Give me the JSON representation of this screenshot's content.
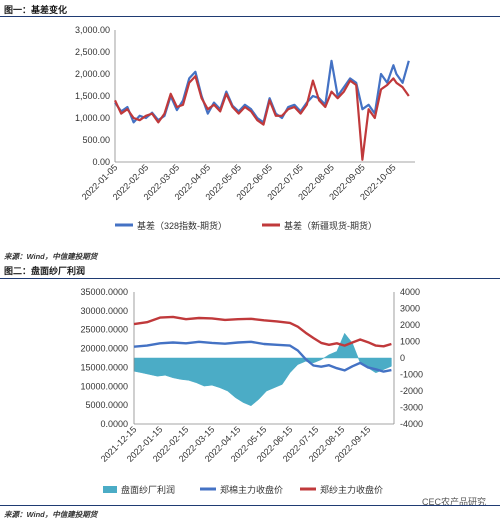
{
  "figure1": {
    "title": "图一：基差变化",
    "source": "来源：Wind，中信建投期货"
  },
  "figure2": {
    "title": "图二：盘面纱厂利润",
    "source": "来源：Wind，中信建投期货"
  },
  "watermark": "CEC农产品研究",
  "colors": {
    "blue": "#4472c4",
    "red": "#c0393b",
    "cyan": "#4bacc6",
    "rule": "#1f3b73"
  },
  "chart_data": [
    {
      "type": "line",
      "yticks": [
        "0.00",
        "500.00",
        "1,000.00",
        "1,500.00",
        "2,000.00",
        "2,500.00",
        "3,000.00"
      ],
      "ylim": [
        0,
        3000
      ],
      "x_tick_labels": [
        "2022-01-05",
        "2022-02-05",
        "2022-03-05",
        "2022-04-05",
        "2022-05-05",
        "2022-06-05",
        "2022-07-05",
        "2022-08-05",
        "2022-09-05",
        "2022-10-05"
      ],
      "legend_position": "bottom",
      "series": [
        {
          "name": "基差（328指数-期货）",
          "color": "#4472c4",
          "x": [
            0,
            0.2,
            0.4,
            0.6,
            0.8,
            1.0,
            1.2,
            1.4,
            1.6,
            1.8,
            2.0,
            2.2,
            2.4,
            2.6,
            2.8,
            3.0,
            3.2,
            3.4,
            3.6,
            3.8,
            4.0,
            4.2,
            4.4,
            4.6,
            4.8,
            5.0,
            5.2,
            5.4,
            5.6,
            5.8,
            6.0,
            6.2,
            6.4,
            6.6,
            6.8,
            7.0,
            7.2,
            7.4,
            7.6,
            7.8,
            8.0,
            8.2,
            8.4,
            8.6,
            8.8,
            9.0,
            9.1,
            9.3,
            9.5
          ],
          "values": [
            1350,
            1150,
            1250,
            900,
            1050,
            1000,
            1120,
            950,
            1050,
            1500,
            1180,
            1400,
            1900,
            2050,
            1500,
            1100,
            1350,
            1200,
            1600,
            1280,
            1150,
            1300,
            1200,
            1000,
            900,
            1450,
            1100,
            1000,
            1250,
            1300,
            1150,
            1350,
            1500,
            1450,
            1300,
            2300,
            1500,
            1700,
            1900,
            1800,
            1200,
            1300,
            1100,
            2000,
            1800,
            2200,
            2000,
            1800,
            2300
          ]
        },
        {
          "name": "基差（新疆现货-期货）",
          "color": "#c0393b",
          "x": [
            0,
            0.2,
            0.4,
            0.6,
            0.8,
            1.0,
            1.2,
            1.4,
            1.6,
            1.8,
            2.0,
            2.2,
            2.4,
            2.6,
            2.8,
            3.0,
            3.2,
            3.4,
            3.6,
            3.8,
            4.0,
            4.2,
            4.4,
            4.6,
            4.8,
            5.0,
            5.2,
            5.4,
            5.6,
            5.8,
            6.0,
            6.2,
            6.4,
            6.6,
            6.8,
            7.0,
            7.2,
            7.4,
            7.6,
            7.8,
            8.0,
            8.2,
            8.4,
            8.6,
            8.8,
            9.0,
            9.1,
            9.3,
            9.5
          ],
          "values": [
            1400,
            1100,
            1200,
            1000,
            950,
            1050,
            1100,
            900,
            1100,
            1550,
            1250,
            1300,
            1800,
            1950,
            1450,
            1200,
            1300,
            1150,
            1550,
            1250,
            1100,
            1250,
            1150,
            950,
            850,
            1400,
            1050,
            1050,
            1200,
            1250,
            1100,
            1300,
            1850,
            1400,
            1250,
            1600,
            1450,
            1600,
            1850,
            1750,
            50,
            1200,
            1000,
            1650,
            1750,
            1900,
            1800,
            1700,
            1500
          ]
        }
      ]
    },
    {
      "type": "bar+line",
      "left_yticks": [
        "0.0000",
        "5000.0000",
        "10000.0000",
        "15000.0000",
        "20000.0000",
        "25000.0000",
        "30000.0000",
        "35000.0000"
      ],
      "left_ylim": [
        0,
        35000
      ],
      "right_yticks": [
        "-4000",
        "-3000",
        "-2000",
        "-1000",
        "0",
        "1000",
        "2000",
        "3000",
        "4000"
      ],
      "right_ylim": [
        -4000,
        4000
      ],
      "x_tick_labels": [
        "2021-12-15",
        "2022-01-15",
        "2022-02-15",
        "2022-03-15",
        "2022-04-15",
        "2022-05-15",
        "2022-06-15",
        "2022-07-15",
        "2022-08-15",
        "2022-09-15"
      ],
      "legend_position": "bottom",
      "series": [
        {
          "name": "盘面纱厂利润",
          "axis": "right",
          "color": "#4bacc6",
          "x": [
            0,
            0.3,
            0.6,
            0.9,
            1.2,
            1.5,
            1.8,
            2.1,
            2.4,
            2.7,
            3.0,
            3.3,
            3.6,
            3.9,
            4.2,
            4.5,
            4.8,
            5.1,
            5.4,
            5.7,
            6.0,
            6.3,
            6.6,
            6.9,
            7.2,
            7.5,
            7.8,
            8.1,
            8.4,
            8.7,
            9.0,
            9.3,
            9.6,
            9.9
          ],
          "values": [
            -800,
            -900,
            -1000,
            -1100,
            -1050,
            -1200,
            -1300,
            -1350,
            -1500,
            -1700,
            -1650,
            -1800,
            -2000,
            -2400,
            -2700,
            -2900,
            -2500,
            -2000,
            -1800,
            -1600,
            -900,
            -400,
            -200,
            -300,
            -100,
            200,
            400,
            1500,
            900,
            -300,
            -600,
            -900,
            -700,
            -500
          ]
        },
        {
          "name": "郑棉主力收盘价",
          "axis": "left",
          "color": "#4472c4",
          "x": [
            0,
            0.5,
            1.0,
            1.5,
            2.0,
            2.5,
            3.0,
            3.5,
            4.0,
            4.5,
            5.0,
            5.5,
            6.0,
            6.3,
            6.6,
            6.9,
            7.2,
            7.5,
            7.8,
            8.1,
            8.4,
            8.7,
            9.0,
            9.3,
            9.6,
            9.9
          ],
          "values": [
            20500,
            20800,
            21400,
            21600,
            21400,
            21800,
            21500,
            21300,
            21600,
            21800,
            21200,
            21000,
            20800,
            19500,
            17200,
            15500,
            15200,
            15600,
            14800,
            14200,
            15300,
            16200,
            15000,
            14500,
            13900,
            14300
          ]
        },
        {
          "name": "郑纱主力收盘价",
          "axis": "left",
          "color": "#c0393b",
          "x": [
            0,
            0.5,
            1.0,
            1.5,
            2.0,
            2.5,
            3.0,
            3.5,
            4.0,
            4.5,
            5.0,
            5.5,
            6.0,
            6.3,
            6.6,
            6.9,
            7.2,
            7.5,
            7.8,
            8.1,
            8.4,
            8.7,
            9.0,
            9.3,
            9.6,
            9.9
          ],
          "values": [
            26500,
            27000,
            28200,
            28400,
            27800,
            28100,
            28000,
            27600,
            27800,
            27900,
            27500,
            27200,
            26800,
            25800,
            24200,
            22800,
            21500,
            21000,
            21400,
            20800,
            21600,
            22400,
            21700,
            20800,
            20600,
            21200
          ]
        }
      ]
    }
  ]
}
